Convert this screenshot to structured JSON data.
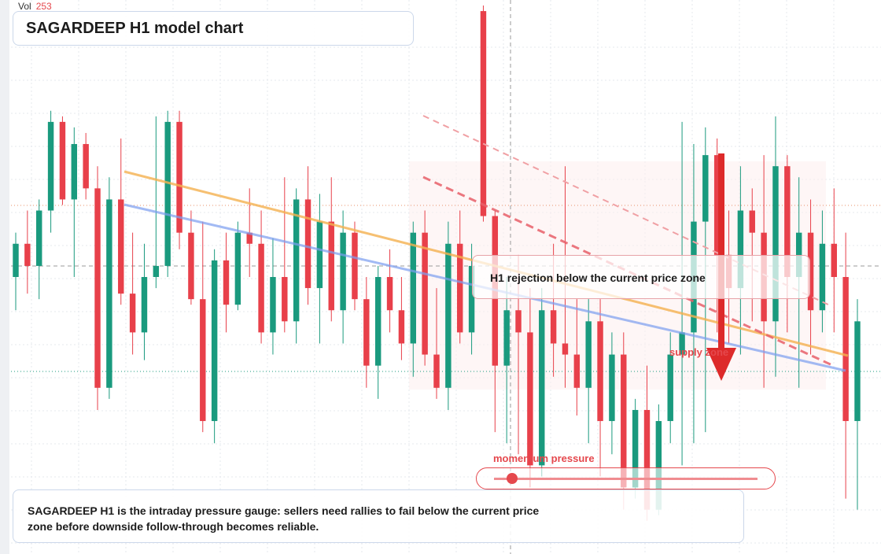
{
  "chart_data": {
    "type": "candlestick",
    "title": "SAGARDEEP H1 model chart",
    "volume_label": "Vol",
    "volume": 253,
    "callout": "H1 rejection below the current price zone",
    "zone_label": "supply zone",
    "gauge_label": "momentum pressure",
    "description": "SAGARDEEP H1 is the intraday pressure gauge: sellers need rallies to fail below the current price zone before downside follow-through becomes reliable.",
    "up_color": "#1a9a7e",
    "down_color": "#e8404a",
    "ylim": [
      0,
      100
    ],
    "ohlc": [
      [
        50,
        58,
        44,
        56
      ],
      [
        56,
        62,
        47,
        52
      ],
      [
        52,
        64,
        46,
        62
      ],
      [
        62,
        80,
        58,
        78
      ],
      [
        78,
        79,
        63,
        64
      ],
      [
        64,
        77,
        50,
        74
      ],
      [
        74,
        76,
        64,
        66
      ],
      [
        66,
        70,
        26,
        30
      ],
      [
        30,
        68,
        28,
        64
      ],
      [
        64,
        75,
        45,
        47
      ],
      [
        47,
        58,
        36,
        40
      ],
      [
        40,
        56,
        35,
        50
      ],
      [
        50,
        79,
        48,
        52
      ],
      [
        52,
        80,
        50,
        78
      ],
      [
        78,
        80,
        55,
        58
      ],
      [
        58,
        62,
        45,
        46
      ],
      [
        46,
        60,
        22,
        24
      ],
      [
        24,
        55,
        20,
        53
      ],
      [
        53,
        58,
        40,
        45
      ],
      [
        45,
        60,
        44,
        58
      ],
      [
        58,
        66,
        50,
        56
      ],
      [
        56,
        62,
        38,
        40
      ],
      [
        40,
        57,
        36,
        50
      ],
      [
        50,
        68,
        40,
        42
      ],
      [
        42,
        66,
        38,
        64
      ],
      [
        64,
        70,
        45,
        48
      ],
      [
        48,
        65,
        38,
        60
      ],
      [
        60,
        68,
        42,
        44
      ],
      [
        44,
        62,
        38,
        58
      ],
      [
        58,
        60,
        44,
        46
      ],
      [
        46,
        50,
        30,
        34
      ],
      [
        34,
        52,
        28,
        50
      ],
      [
        50,
        55,
        40,
        44
      ],
      [
        44,
        50,
        35,
        38
      ],
      [
        38,
        60,
        32,
        58
      ],
      [
        58,
        62,
        34,
        36
      ],
      [
        36,
        48,
        28,
        30
      ],
      [
        30,
        60,
        26,
        56
      ],
      [
        56,
        62,
        38,
        40
      ],
      [
        40,
        56,
        36,
        52
      ],
      [
        98,
        99,
        60,
        61
      ],
      [
        61,
        62,
        22,
        34
      ],
      [
        34,
        50,
        20,
        44
      ],
      [
        44,
        54,
        18,
        40
      ],
      [
        40,
        48,
        12,
        16
      ],
      [
        16,
        48,
        14,
        44
      ],
      [
        44,
        56,
        32,
        38
      ],
      [
        38,
        70,
        30,
        36
      ],
      [
        36,
        46,
        25,
        30
      ],
      [
        30,
        46,
        20,
        42
      ],
      [
        42,
        46,
        14,
        24
      ],
      [
        24,
        40,
        18,
        36
      ],
      [
        36,
        40,
        8,
        12
      ],
      [
        12,
        28,
        10,
        26
      ],
      [
        26,
        34,
        6,
        8
      ],
      [
        8,
        27,
        7,
        24
      ],
      [
        24,
        40,
        20,
        36
      ],
      [
        36,
        78,
        16,
        40
      ],
      [
        40,
        74,
        20,
        60
      ],
      [
        60,
        77,
        22,
        72
      ],
      [
        72,
        75,
        40,
        54
      ],
      [
        54,
        62,
        38,
        48
      ],
      [
        48,
        70,
        36,
        62
      ],
      [
        62,
        66,
        42,
        58
      ],
      [
        58,
        72,
        30,
        42
      ],
      [
        42,
        79,
        32,
        70
      ],
      [
        70,
        72,
        40,
        50
      ],
      [
        50,
        68,
        30,
        58
      ],
      [
        58,
        64,
        36,
        44
      ],
      [
        44,
        62,
        40,
        56
      ],
      [
        56,
        66,
        40,
        50
      ],
      [
        50,
        58,
        10,
        24
      ],
      [
        24,
        46,
        8,
        42
      ]
    ]
  }
}
